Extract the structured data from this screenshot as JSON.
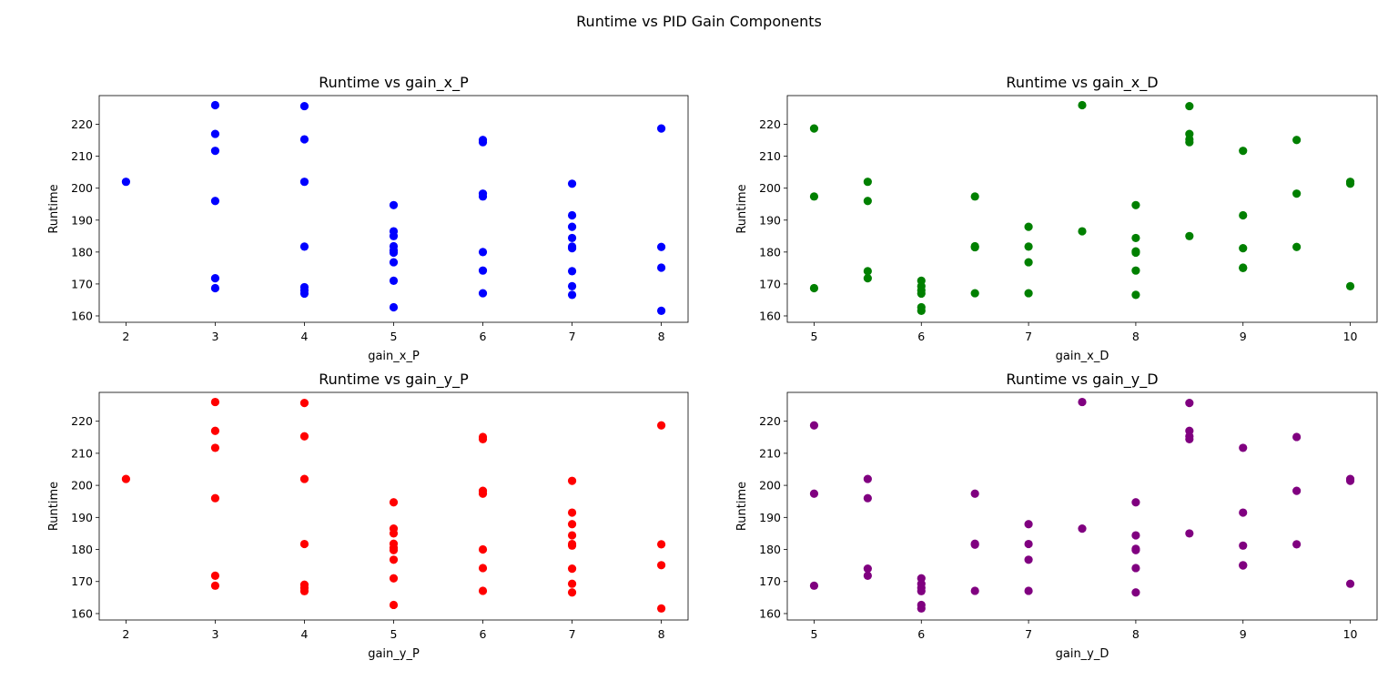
{
  "figure": {
    "title": "Runtime vs PID Gain Components"
  },
  "chart_data": [
    {
      "type": "scatter",
      "title": "Runtime vs gain_x_P",
      "xlabel": "gain_x_P",
      "ylabel": "Runtime",
      "color": "#0000ff",
      "xlim": [
        1.7,
        8.3
      ],
      "ylim": [
        158,
        229
      ],
      "xticks": [
        2,
        3,
        4,
        5,
        6,
        7,
        8
      ],
      "yticks": [
        160,
        170,
        180,
        190,
        200,
        210,
        220
      ],
      "grid": false,
      "points": [
        [
          2,
          202
        ],
        [
          3,
          226
        ],
        [
          3,
          217
        ],
        [
          3,
          211.7
        ],
        [
          3,
          196
        ],
        [
          3,
          171.8
        ],
        [
          3,
          168.7
        ],
        [
          4,
          225.7
        ],
        [
          4,
          215.3
        ],
        [
          4,
          202
        ],
        [
          4,
          181.7
        ],
        [
          4,
          169
        ],
        [
          4,
          168
        ],
        [
          4,
          167
        ],
        [
          5,
          194.7
        ],
        [
          5,
          186.5
        ],
        [
          5,
          185
        ],
        [
          5,
          181.8
        ],
        [
          5,
          180.5
        ],
        [
          5,
          179.8
        ],
        [
          5,
          176.8
        ],
        [
          5,
          171
        ],
        [
          5,
          162.7
        ],
        [
          6,
          215.1
        ],
        [
          6,
          214.4
        ],
        [
          6,
          198.3
        ],
        [
          6,
          197.4
        ],
        [
          6,
          180
        ],
        [
          6,
          174.2
        ],
        [
          6,
          167.1
        ],
        [
          7,
          201.4
        ],
        [
          7,
          191.5
        ],
        [
          7,
          187.9
        ],
        [
          7,
          184.4
        ],
        [
          7,
          181.7
        ],
        [
          7,
          181.2
        ],
        [
          7,
          174
        ],
        [
          7,
          169.3
        ],
        [
          7,
          166.6
        ],
        [
          8,
          218.7
        ],
        [
          8,
          181.6
        ],
        [
          8,
          175.1
        ],
        [
          8,
          161.6
        ]
      ]
    },
    {
      "type": "scatter",
      "title": "Runtime vs gain_x_D",
      "xlabel": "gain_x_D",
      "ylabel": "Runtime",
      "color": "#008000",
      "xlim": [
        4.75,
        10.25
      ],
      "ylim": [
        158,
        229
      ],
      "xticks": [
        5,
        6,
        7,
        8,
        9,
        10
      ],
      "yticks": [
        160,
        170,
        180,
        190,
        200,
        210,
        220
      ],
      "grid": false,
      "points": [
        [
          5,
          218.7
        ],
        [
          5,
          197.4
        ],
        [
          5,
          168.7
        ],
        [
          5.5,
          202
        ],
        [
          5.5,
          196
        ],
        [
          5.5,
          174
        ],
        [
          5.5,
          171.8
        ],
        [
          6,
          171
        ],
        [
          6,
          169.3
        ],
        [
          6,
          168
        ],
        [
          6,
          167
        ],
        [
          6,
          162.7
        ],
        [
          6,
          161.6
        ],
        [
          6.5,
          197.4
        ],
        [
          6.5,
          181.8
        ],
        [
          6.5,
          181.5
        ],
        [
          6.5,
          167.1
        ],
        [
          7,
          187.9
        ],
        [
          7,
          181.7
        ],
        [
          7,
          176.8
        ],
        [
          7,
          167.1
        ],
        [
          7.5,
          226
        ],
        [
          7.5,
          186.5
        ],
        [
          8,
          194.7
        ],
        [
          8,
          184.4
        ],
        [
          8,
          180.2
        ],
        [
          8,
          179.8
        ],
        [
          8,
          174.2
        ],
        [
          8,
          166.6
        ],
        [
          8.5,
          225.7
        ],
        [
          8.5,
          217
        ],
        [
          8.5,
          215.3
        ],
        [
          8.5,
          214.4
        ],
        [
          8.5,
          185
        ],
        [
          9,
          211.7
        ],
        [
          9,
          191.5
        ],
        [
          9,
          181.2
        ],
        [
          9,
          175.1
        ],
        [
          9,
          175
        ],
        [
          9.5,
          215.1
        ],
        [
          9.5,
          198.3
        ],
        [
          9.5,
          181.6
        ],
        [
          10,
          202
        ],
        [
          10,
          201.4
        ],
        [
          10,
          169.3
        ]
      ]
    },
    {
      "type": "scatter",
      "title": "Runtime vs gain_y_P",
      "xlabel": "gain_y_P",
      "ylabel": "Runtime",
      "color": "#ff0000",
      "xlim": [
        1.7,
        8.3
      ],
      "ylim": [
        158,
        229
      ],
      "xticks": [
        2,
        3,
        4,
        5,
        6,
        7,
        8
      ],
      "yticks": [
        160,
        170,
        180,
        190,
        200,
        210,
        220
      ],
      "grid": false,
      "points": [
        [
          2,
          202
        ],
        [
          3,
          226
        ],
        [
          3,
          217
        ],
        [
          3,
          211.7
        ],
        [
          3,
          196
        ],
        [
          3,
          171.8
        ],
        [
          3,
          168.7
        ],
        [
          4,
          225.7
        ],
        [
          4,
          215.3
        ],
        [
          4,
          202
        ],
        [
          4,
          181.7
        ],
        [
          4,
          169
        ],
        [
          4,
          168
        ],
        [
          4,
          167
        ],
        [
          5,
          194.7
        ],
        [
          5,
          186.5
        ],
        [
          5,
          185
        ],
        [
          5,
          181.8
        ],
        [
          5,
          180.5
        ],
        [
          5,
          179.8
        ],
        [
          5,
          176.8
        ],
        [
          5,
          171
        ],
        [
          5,
          162.7
        ],
        [
          6,
          215.1
        ],
        [
          6,
          214.4
        ],
        [
          6,
          198.3
        ],
        [
          6,
          197.4
        ],
        [
          6,
          180
        ],
        [
          6,
          174.2
        ],
        [
          6,
          167.1
        ],
        [
          7,
          201.4
        ],
        [
          7,
          191.5
        ],
        [
          7,
          187.9
        ],
        [
          7,
          184.4
        ],
        [
          7,
          181.7
        ],
        [
          7,
          181.2
        ],
        [
          7,
          174
        ],
        [
          7,
          169.3
        ],
        [
          7,
          166.6
        ],
        [
          8,
          218.7
        ],
        [
          8,
          181.6
        ],
        [
          8,
          175.1
        ],
        [
          8,
          161.6
        ]
      ]
    },
    {
      "type": "scatter",
      "title": "Runtime vs gain_y_D",
      "xlabel": "gain_y_D",
      "ylabel": "Runtime",
      "color": "#800080",
      "xlim": [
        4.75,
        10.25
      ],
      "ylim": [
        158,
        229
      ],
      "xticks": [
        5,
        6,
        7,
        8,
        9,
        10
      ],
      "yticks": [
        160,
        170,
        180,
        190,
        200,
        210,
        220
      ],
      "grid": false,
      "points": [
        [
          5,
          218.7
        ],
        [
          5,
          197.4
        ],
        [
          5,
          168.7
        ],
        [
          5.5,
          202
        ],
        [
          5.5,
          196
        ],
        [
          5.5,
          174
        ],
        [
          5.5,
          171.8
        ],
        [
          6,
          171
        ],
        [
          6,
          169.3
        ],
        [
          6,
          168
        ],
        [
          6,
          167
        ],
        [
          6,
          162.7
        ],
        [
          6,
          161.6
        ],
        [
          6.5,
          197.4
        ],
        [
          6.5,
          181.8
        ],
        [
          6.5,
          181.5
        ],
        [
          6.5,
          167.1
        ],
        [
          7,
          187.9
        ],
        [
          7,
          181.7
        ],
        [
          7,
          176.8
        ],
        [
          7,
          167.1
        ],
        [
          7.5,
          226
        ],
        [
          7.5,
          186.5
        ],
        [
          8,
          194.7
        ],
        [
          8,
          184.4
        ],
        [
          8,
          180.2
        ],
        [
          8,
          179.8
        ],
        [
          8,
          174.2
        ],
        [
          8,
          166.6
        ],
        [
          8.5,
          225.7
        ],
        [
          8.5,
          217
        ],
        [
          8.5,
          215.3
        ],
        [
          8.5,
          214.4
        ],
        [
          8.5,
          185
        ],
        [
          9,
          211.7
        ],
        [
          9,
          191.5
        ],
        [
          9,
          181.2
        ],
        [
          9,
          175.1
        ],
        [
          9,
          175
        ],
        [
          9.5,
          215.1
        ],
        [
          9.5,
          198.3
        ],
        [
          9.5,
          181.6
        ],
        [
          10,
          202
        ],
        [
          10,
          201.4
        ],
        [
          10,
          169.3
        ]
      ]
    }
  ]
}
